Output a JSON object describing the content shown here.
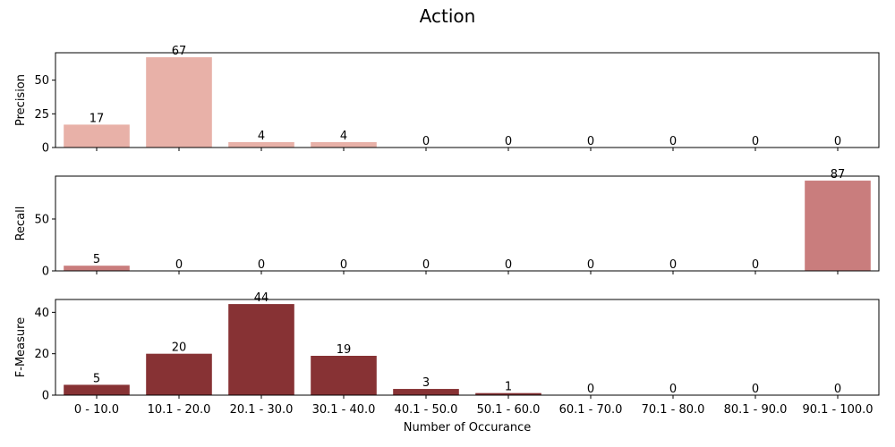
{
  "chart_data": {
    "type": "bar",
    "title": "Action",
    "xlabel": "Number of Occurance",
    "categories": [
      "0 - 10.0",
      "10.1 - 20.0",
      "20.1 - 30.0",
      "30.1 - 40.0",
      "40.1 - 50.0",
      "50.1 - 60.0",
      "60.1 - 70.0",
      "70.1 - 80.0",
      "80.1 - 90.0",
      "90.1 - 100.0"
    ],
    "panels": [
      {
        "ylabel": "Precision",
        "color": "#e8b1a8",
        "values": [
          17,
          67,
          4,
          4,
          0,
          0,
          0,
          0,
          0,
          0
        ],
        "ylim": [
          0,
          70.35
        ],
        "yticks": [
          0,
          25,
          50
        ]
      },
      {
        "ylabel": "Recall",
        "color": "#c97d7d",
        "values": [
          5,
          0,
          0,
          0,
          0,
          0,
          0,
          0,
          0,
          87
        ],
        "ylim": [
          0,
          91.35
        ],
        "yticks": [
          0,
          50
        ]
      },
      {
        "ylabel": "F-Measure",
        "color": "#873234",
        "values": [
          5,
          20,
          44,
          19,
          3,
          1,
          0,
          0,
          0,
          0
        ],
        "ylim": [
          0,
          46.2
        ],
        "yticks": [
          0,
          20,
          40
        ]
      }
    ]
  }
}
